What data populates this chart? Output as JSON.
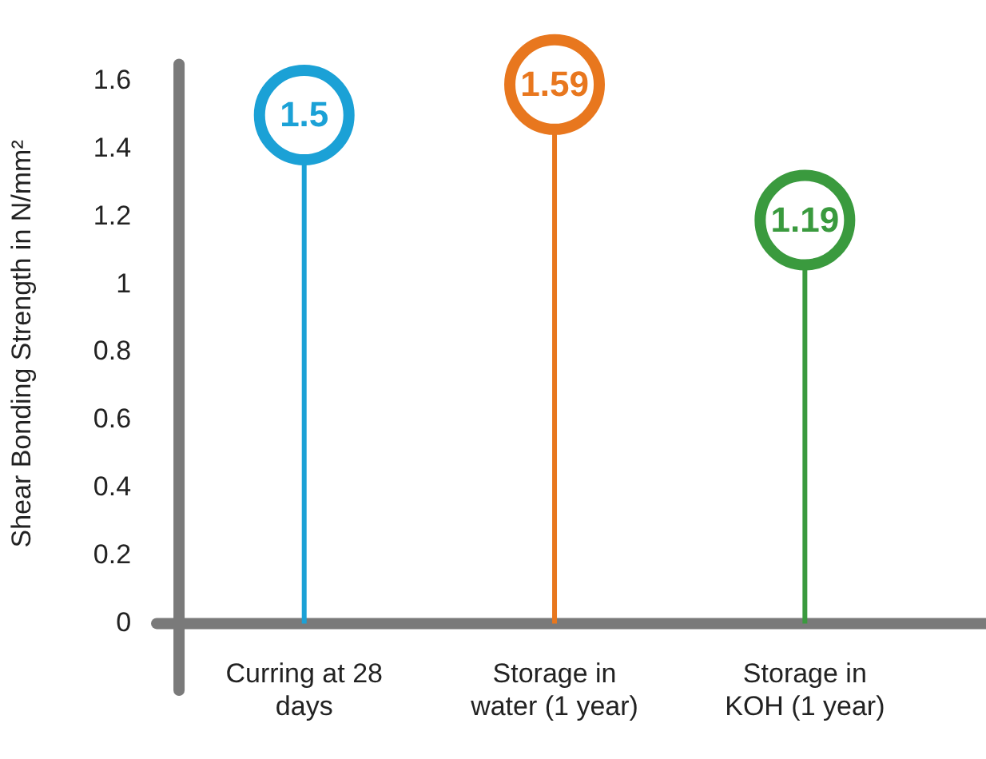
{
  "chart_data": {
    "type": "lollipop",
    "ylabel": "Shear Bonding Strength in N/mm²",
    "categories": [
      "Curring at 28 days",
      "Storage in water (1 year)",
      "Storage in KOH (1 year)"
    ],
    "values": [
      1.5,
      1.59,
      1.19
    ],
    "colors": [
      "#1ba1d6",
      "#e8771e",
      "#3a9a3e"
    ],
    "ylim": [
      0,
      1.65
    ],
    "yticks": [
      0,
      0.2,
      0.4,
      0.6,
      0.8,
      1,
      1.2,
      1.4,
      1.6
    ],
    "grid": false,
    "legend": false,
    "data_labels": true
  }
}
